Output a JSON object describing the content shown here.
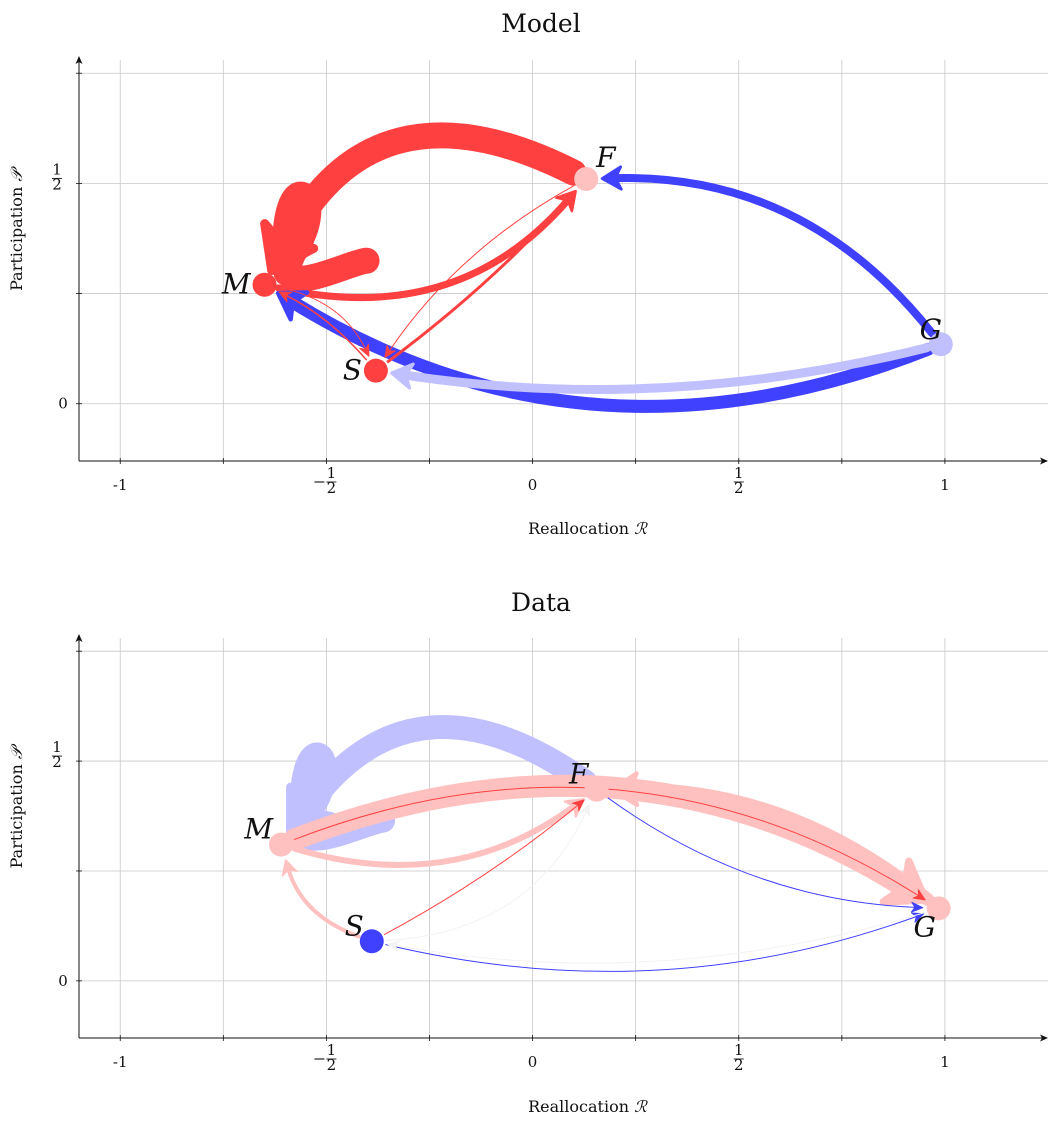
{
  "chart_data": [
    {
      "type": "network",
      "title": "Model",
      "xlabel": "Reallocation",
      "xlabel_symbol": "ℛ",
      "ylabel": "Participation",
      "ylabel_symbol": "𝒫",
      "xlim": [
        -1.1,
        1.25
      ],
      "ylim": [
        -0.13,
        0.78
      ],
      "grid": true,
      "x_ticks": [
        {
          "v": -1,
          "label": "-1",
          "kind": "plain"
        },
        {
          "v": -0.75,
          "label": "",
          "kind": "none"
        },
        {
          "v": -0.5,
          "label": "1/2",
          "kind": "neg-frac"
        },
        {
          "v": -0.25,
          "label": "",
          "kind": "none"
        },
        {
          "v": 0,
          "label": "0",
          "kind": "plain"
        },
        {
          "v": 0.25,
          "label": "",
          "kind": "none"
        },
        {
          "v": 0.5,
          "label": "1/2",
          "kind": "frac"
        },
        {
          "v": 0.75,
          "label": "",
          "kind": "none"
        },
        {
          "v": 1,
          "label": "1",
          "kind": "plain"
        }
      ],
      "y_ticks": [
        {
          "v": 0,
          "label": "0",
          "kind": "plain"
        },
        {
          "v": 0.25,
          "label": "",
          "kind": "none"
        },
        {
          "v": 0.5,
          "label": "1/2",
          "kind": "frac"
        },
        {
          "v": 0.75,
          "label": "",
          "kind": "none"
        }
      ],
      "nodes": [
        {
          "id": "M",
          "label": "M",
          "x": -0.65,
          "y": 0.27,
          "color": "#ff4040",
          "label_pos": "left"
        },
        {
          "id": "S",
          "label": "S",
          "x": -0.38,
          "y": 0.075,
          "color": "#ff4040",
          "label_pos": "left"
        },
        {
          "id": "F",
          "label": "F",
          "x": 0.13,
          "y": 0.51,
          "color": "#ffc0c0",
          "label_pos": "upright"
        },
        {
          "id": "G",
          "label": "G",
          "x": 0.99,
          "y": 0.135,
          "color": "#c0c0ff",
          "label_pos": "up"
        }
      ],
      "self_loops": [
        {
          "node": "M",
          "weight": 26,
          "color": "#ff4040"
        }
      ],
      "edges": [
        {
          "from": "F",
          "to": "M",
          "weight": 26,
          "color": "#ff4040",
          "bend": 0.5
        },
        {
          "from": "M",
          "to": "F",
          "weight": 7,
          "color": "#ff4040",
          "bend": 0.3
        },
        {
          "from": "G",
          "to": "M",
          "weight": 13,
          "color": "#4040ff",
          "bend": -0.25
        },
        {
          "from": "G",
          "to": "F",
          "weight": 8,
          "color": "#4040ff",
          "bend": 0.25
        },
        {
          "from": "G",
          "to": "S",
          "weight": 9,
          "color": "#c0c0ff",
          "bend": -0.1
        },
        {
          "from": "S",
          "to": "F",
          "weight": 3,
          "color": "#ff4040",
          "bend": 0.05
        },
        {
          "from": "F",
          "to": "S",
          "weight": 1,
          "color": "#ff4040",
          "bend": 0.12
        },
        {
          "from": "M",
          "to": "S",
          "weight": 1,
          "color": "#ff4040",
          "bend": -0.25
        },
        {
          "from": "S",
          "to": "M",
          "weight": 1.5,
          "color": "#ff4040",
          "bend": 0.1
        }
      ]
    },
    {
      "type": "network",
      "title": "Data",
      "xlabel": "Reallocation",
      "xlabel_symbol": "ℛ",
      "ylabel": "Participation",
      "ylabel_symbol": "𝒫",
      "xlim": [
        -1.1,
        1.25
      ],
      "ylim": [
        -0.13,
        0.78
      ],
      "grid": true,
      "x_ticks": [
        {
          "v": -1,
          "label": "-1",
          "kind": "plain"
        },
        {
          "v": -0.75,
          "label": "",
          "kind": "none"
        },
        {
          "v": -0.5,
          "label": "1/2",
          "kind": "neg-frac"
        },
        {
          "v": -0.25,
          "label": "",
          "kind": "none"
        },
        {
          "v": 0,
          "label": "0",
          "kind": "plain"
        },
        {
          "v": 0.25,
          "label": "",
          "kind": "none"
        },
        {
          "v": 0.5,
          "label": "1/2",
          "kind": "frac"
        },
        {
          "v": 0.75,
          "label": "",
          "kind": "none"
        },
        {
          "v": 1,
          "label": "1",
          "kind": "plain"
        }
      ],
      "y_ticks": [
        {
          "v": 0,
          "label": "0",
          "kind": "plain"
        },
        {
          "v": 0.25,
          "label": "",
          "kind": "none"
        },
        {
          "v": 0.5,
          "label": "1/2",
          "kind": "frac"
        },
        {
          "v": 0.75,
          "label": "",
          "kind": "none"
        }
      ],
      "nodes": [
        {
          "id": "M",
          "label": "M",
          "x": -0.61,
          "y": 0.31,
          "color": "#ffc0c0",
          "label_pos": "upleft"
        },
        {
          "id": "S",
          "label": "S",
          "x": -0.39,
          "y": 0.09,
          "color": "#4040ff",
          "label_pos": "upleft"
        },
        {
          "id": "F",
          "label": "F",
          "x": 0.155,
          "y": 0.435,
          "color": "#ffc0c0",
          "label_pos": "upleft"
        },
        {
          "id": "G",
          "label": "G",
          "x": 0.985,
          "y": 0.165,
          "color": "#ffc0c0",
          "label_pos": "down"
        }
      ],
      "self_loops": [
        {
          "node": "M",
          "weight": 24,
          "color": "#c0c0ff"
        }
      ],
      "edges": [
        {
          "from": "F",
          "to": "M",
          "weight": 24,
          "color": "#c0c0ff",
          "bend": 0.5
        },
        {
          "from": "M",
          "to": "G",
          "weight": 22,
          "color": "#ffc0c0",
          "bend": -0.25
        },
        {
          "from": "G",
          "to": "F",
          "weight": 13,
          "color": "#ffc0c0",
          "bend": 0.18
        },
        {
          "from": "M",
          "to": "F",
          "weight": 6,
          "color": "#ffc0c0",
          "bend": 0.25
        },
        {
          "from": "S",
          "to": "M",
          "weight": 4,
          "color": "#ffc0c0",
          "bend": -0.25
        },
        {
          "from": "M",
          "to": "G",
          "weight": 1,
          "color": "#ff4040",
          "bend": -0.25
        },
        {
          "from": "S",
          "to": "F",
          "weight": 1,
          "color": "#ff4040",
          "bend": 0.05
        },
        {
          "from": "S",
          "to": "G",
          "weight": 1,
          "color": "#4040ff",
          "bend": 0.15
        },
        {
          "from": "F",
          "to": "G",
          "weight": 1,
          "color": "#4040ff",
          "bend": 0.15
        },
        {
          "from": "G",
          "to": "S",
          "weight": 1,
          "color": "#f3f3f3",
          "bend": -0.12
        },
        {
          "from": "S",
          "to": "F",
          "weight": 1,
          "color": "#f3f3f3",
          "bend": 0.3
        }
      ]
    }
  ]
}
